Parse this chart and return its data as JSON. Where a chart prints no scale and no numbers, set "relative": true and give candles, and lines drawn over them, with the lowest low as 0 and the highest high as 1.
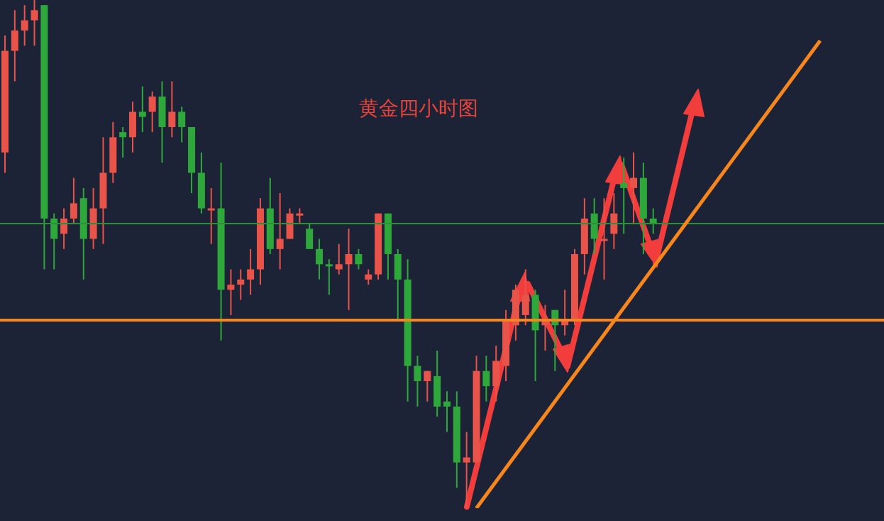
{
  "chart_data": {
    "type": "candlestick",
    "title": "黄金四小时图",
    "relative": true,
    "tick_labels": false,
    "categories": [
      null,
      null,
      null,
      null,
      null,
      null,
      null,
      null,
      null,
      null,
      null,
      null,
      null,
      null,
      null,
      null,
      null,
      null,
      null,
      null,
      null,
      null,
      null,
      null,
      null,
      null,
      null,
      null,
      null,
      null,
      null,
      null,
      null,
      null,
      null,
      null,
      null,
      null,
      null,
      null,
      null,
      null,
      null,
      null,
      null,
      null,
      null,
      null,
      null,
      null,
      null,
      null,
      null,
      null,
      null,
      null,
      null,
      null,
      null,
      null,
      null,
      null,
      null,
      null,
      null,
      null,
      null,
      null,
      null,
      null,
      null,
      null,
      null,
      null,
      null,
      null,
      null,
      null,
      null,
      null,
      null,
      null,
      null,
      null,
      null,
      null,
      null,
      null,
      null,
      null
    ],
    "ohlc": [
      [
        0.7,
        0.93,
        0.66,
        0.9
      ],
      [
        0.9,
        0.98,
        0.84,
        0.94
      ],
      [
        0.94,
        0.99,
        0.91,
        0.96
      ],
      [
        0.96,
        1.0,
        0.91,
        0.98
      ],
      [
        0.99,
        0.99,
        0.47,
        0.57
      ],
      [
        0.57,
        0.58,
        0.47,
        0.53
      ],
      [
        0.54,
        0.59,
        0.51,
        0.57
      ],
      [
        0.57,
        0.65,
        0.56,
        0.6
      ],
      [
        0.61,
        0.63,
        0.45,
        0.53
      ],
      [
        0.53,
        0.63,
        0.51,
        0.59
      ],
      [
        0.59,
        0.73,
        0.52,
        0.66
      ],
      [
        0.66,
        0.76,
        0.64,
        0.73
      ],
      [
        0.74,
        0.75,
        0.69,
        0.73
      ],
      [
        0.73,
        0.8,
        0.7,
        0.78
      ],
      [
        0.78,
        0.83,
        0.74,
        0.77
      ],
      [
        0.78,
        0.82,
        0.74,
        0.81
      ],
      [
        0.81,
        0.84,
        0.68,
        0.75
      ],
      [
        0.75,
        0.84,
        0.73,
        0.78
      ],
      [
        0.78,
        0.79,
        0.72,
        0.75
      ],
      [
        0.75,
        0.75,
        0.62,
        0.66
      ],
      [
        0.66,
        0.7,
        0.58,
        0.59
      ],
      [
        0.59,
        0.63,
        0.52,
        0.59
      ],
      [
        0.59,
        0.68,
        0.33,
        0.43
      ],
      [
        0.43,
        0.47,
        0.38,
        0.44
      ],
      [
        0.44,
        0.47,
        0.41,
        0.45
      ],
      [
        0.45,
        0.51,
        0.42,
        0.47
      ],
      [
        0.47,
        0.61,
        0.44,
        0.59
      ],
      [
        0.59,
        0.65,
        0.5,
        0.51
      ],
      [
        0.51,
        0.62,
        0.47,
        0.53
      ],
      [
        0.53,
        0.59,
        0.53,
        0.58
      ],
      [
        0.58,
        0.59,
        0.56,
        0.58
      ],
      [
        0.55,
        0.56,
        0.51,
        0.51
      ],
      [
        0.51,
        0.53,
        0.45,
        0.48
      ],
      [
        0.48,
        0.49,
        0.42,
        0.48
      ],
      [
        0.47,
        0.52,
        0.46,
        0.48
      ],
      [
        0.48,
        0.55,
        0.39,
        0.5
      ],
      [
        0.5,
        0.51,
        0.47,
        0.48
      ],
      [
        0.45,
        0.47,
        0.44,
        0.46
      ],
      [
        0.46,
        0.58,
        0.45,
        0.58
      ],
      [
        0.58,
        0.58,
        0.45,
        0.5
      ],
      [
        0.5,
        0.51,
        0.37,
        0.45
      ],
      [
        0.45,
        0.49,
        0.21,
        0.28
      ],
      [
        0.28,
        0.3,
        0.2,
        0.25
      ],
      [
        0.25,
        0.27,
        0.21,
        0.27
      ],
      [
        0.26,
        0.31,
        0.18,
        0.2
      ],
      [
        0.21,
        0.23,
        0.15,
        0.2
      ],
      [
        0.2,
        0.23,
        0.04,
        0.09
      ],
      [
        0.09,
        0.15,
        0.0,
        0.1
      ],
      [
        0.09,
        0.3,
        0.09,
        0.27
      ],
      [
        0.27,
        0.3,
        0.21,
        0.24
      ],
      [
        0.24,
        0.32,
        0.21,
        0.29
      ],
      [
        0.28,
        0.39,
        0.25,
        0.37
      ],
      [
        0.36,
        0.44,
        0.33,
        0.43
      ],
      [
        0.38,
        0.47,
        0.36,
        0.42
      ],
      [
        0.42,
        0.43,
        0.25,
        0.35
      ],
      [
        0.36,
        0.4,
        0.31,
        0.37
      ],
      [
        0.39,
        0.39,
        0.27,
        0.36
      ],
      [
        0.36,
        0.43,
        0.34,
        0.37
      ],
      [
        0.37,
        0.51,
        0.36,
        0.5
      ],
      [
        0.5,
        0.61,
        0.46,
        0.57
      ],
      [
        0.58,
        0.61,
        0.5,
        0.53
      ],
      [
        0.53,
        0.61,
        0.45,
        0.53
      ],
      [
        0.54,
        0.62,
        0.51,
        0.58
      ],
      [
        0.64,
        0.69,
        0.54,
        0.63
      ],
      [
        0.63,
        0.7,
        0.56,
        0.65
      ],
      [
        0.65,
        0.68,
        0.5,
        0.57
      ],
      [
        0.57,
        0.59,
        0.54,
        0.56
      ],
      null,
      null,
      null,
      null,
      null,
      null,
      null,
      null,
      null,
      null,
      null,
      null,
      null,
      null,
      null,
      null,
      null,
      null,
      null,
      null,
      null,
      null,
      null
    ],
    "colors": [
      "#e8534a",
      "#e8534a",
      "#e8534a",
      "#e8534a",
      "#2ea83a",
      "#2ea83a",
      "#e8534a",
      "#e8534a",
      "#2ea83a",
      "#e8534a",
      "#e8534a",
      "#e8534a",
      "#2ea83a",
      "#e8534a",
      "#2ea83a",
      "#e8534a",
      "#2ea83a",
      "#e8534a",
      "#2ea83a",
      "#2ea83a",
      "#2ea83a",
      "#e8534a",
      "#2ea83a",
      "#e8534a",
      "#e8534a",
      "#e8534a",
      "#e8534a",
      "#2ea83a",
      "#e8534a",
      "#e8534a",
      "#e8534a",
      "#2ea83a",
      "#2ea83a",
      "#2ea83a",
      "#e8534a",
      "#e8534a",
      "#2ea83a",
      "#e8534a",
      "#e8534a",
      "#2ea83a",
      "#2ea83a",
      "#2ea83a",
      "#2ea83a",
      "#e8534a",
      "#2ea83a",
      "#2ea83a",
      "#2ea83a",
      "#e8534a",
      "#e8534a",
      "#2ea83a",
      "#e8534a",
      "#e8534a",
      "#e8534a",
      "#e8534a",
      "#2ea83a",
      "#e8534a",
      "#2ea83a",
      "#e8534a",
      "#e8534a",
      "#e8534a",
      "#2ea83a",
      "#e8534a",
      "#e8534a",
      "#2ea83a",
      "#e8534a",
      "#2ea83a",
      "#2ea83a",
      null,
      null,
      null,
      null,
      null,
      null,
      null,
      null,
      null,
      null,
      null,
      null,
      null,
      null,
      null,
      null,
      null,
      null,
      null,
      null,
      null,
      null,
      null
    ],
    "series": [
      {
        "type": "line",
        "values": [
          null,
          null,
          null,
          null,
          null,
          null,
          null,
          null,
          null,
          null,
          null,
          null,
          null,
          null,
          null,
          null,
          null,
          null,
          null,
          null,
          null,
          null,
          null,
          null,
          null,
          null,
          null,
          null,
          null,
          null,
          null,
          null,
          null,
          null,
          null,
          null,
          null,
          null,
          null,
          null,
          null,
          null,
          null,
          null,
          null,
          null,
          null,
          null,
          0,
          null,
          null,
          null,
          null,
          null,
          null,
          null,
          null,
          null,
          null,
          null,
          null,
          null,
          null,
          null,
          null,
          null,
          null,
          null,
          null,
          null,
          null,
          null,
          null,
          null,
          null,
          null,
          null,
          null,
          null,
          null,
          null,
          null,
          null,
          0.92,
          null,
          null,
          null,
          null,
          null,
          null
        ],
        "color": "#f7861c"
      }
    ],
    "ref_lines": [
      {
        "axis": "y",
        "value": 0.37,
        "color": "#f7861c"
      },
      {
        "axis": "y",
        "value": 0.56,
        "color": "#2e8f3a"
      }
    ]
  }
}
